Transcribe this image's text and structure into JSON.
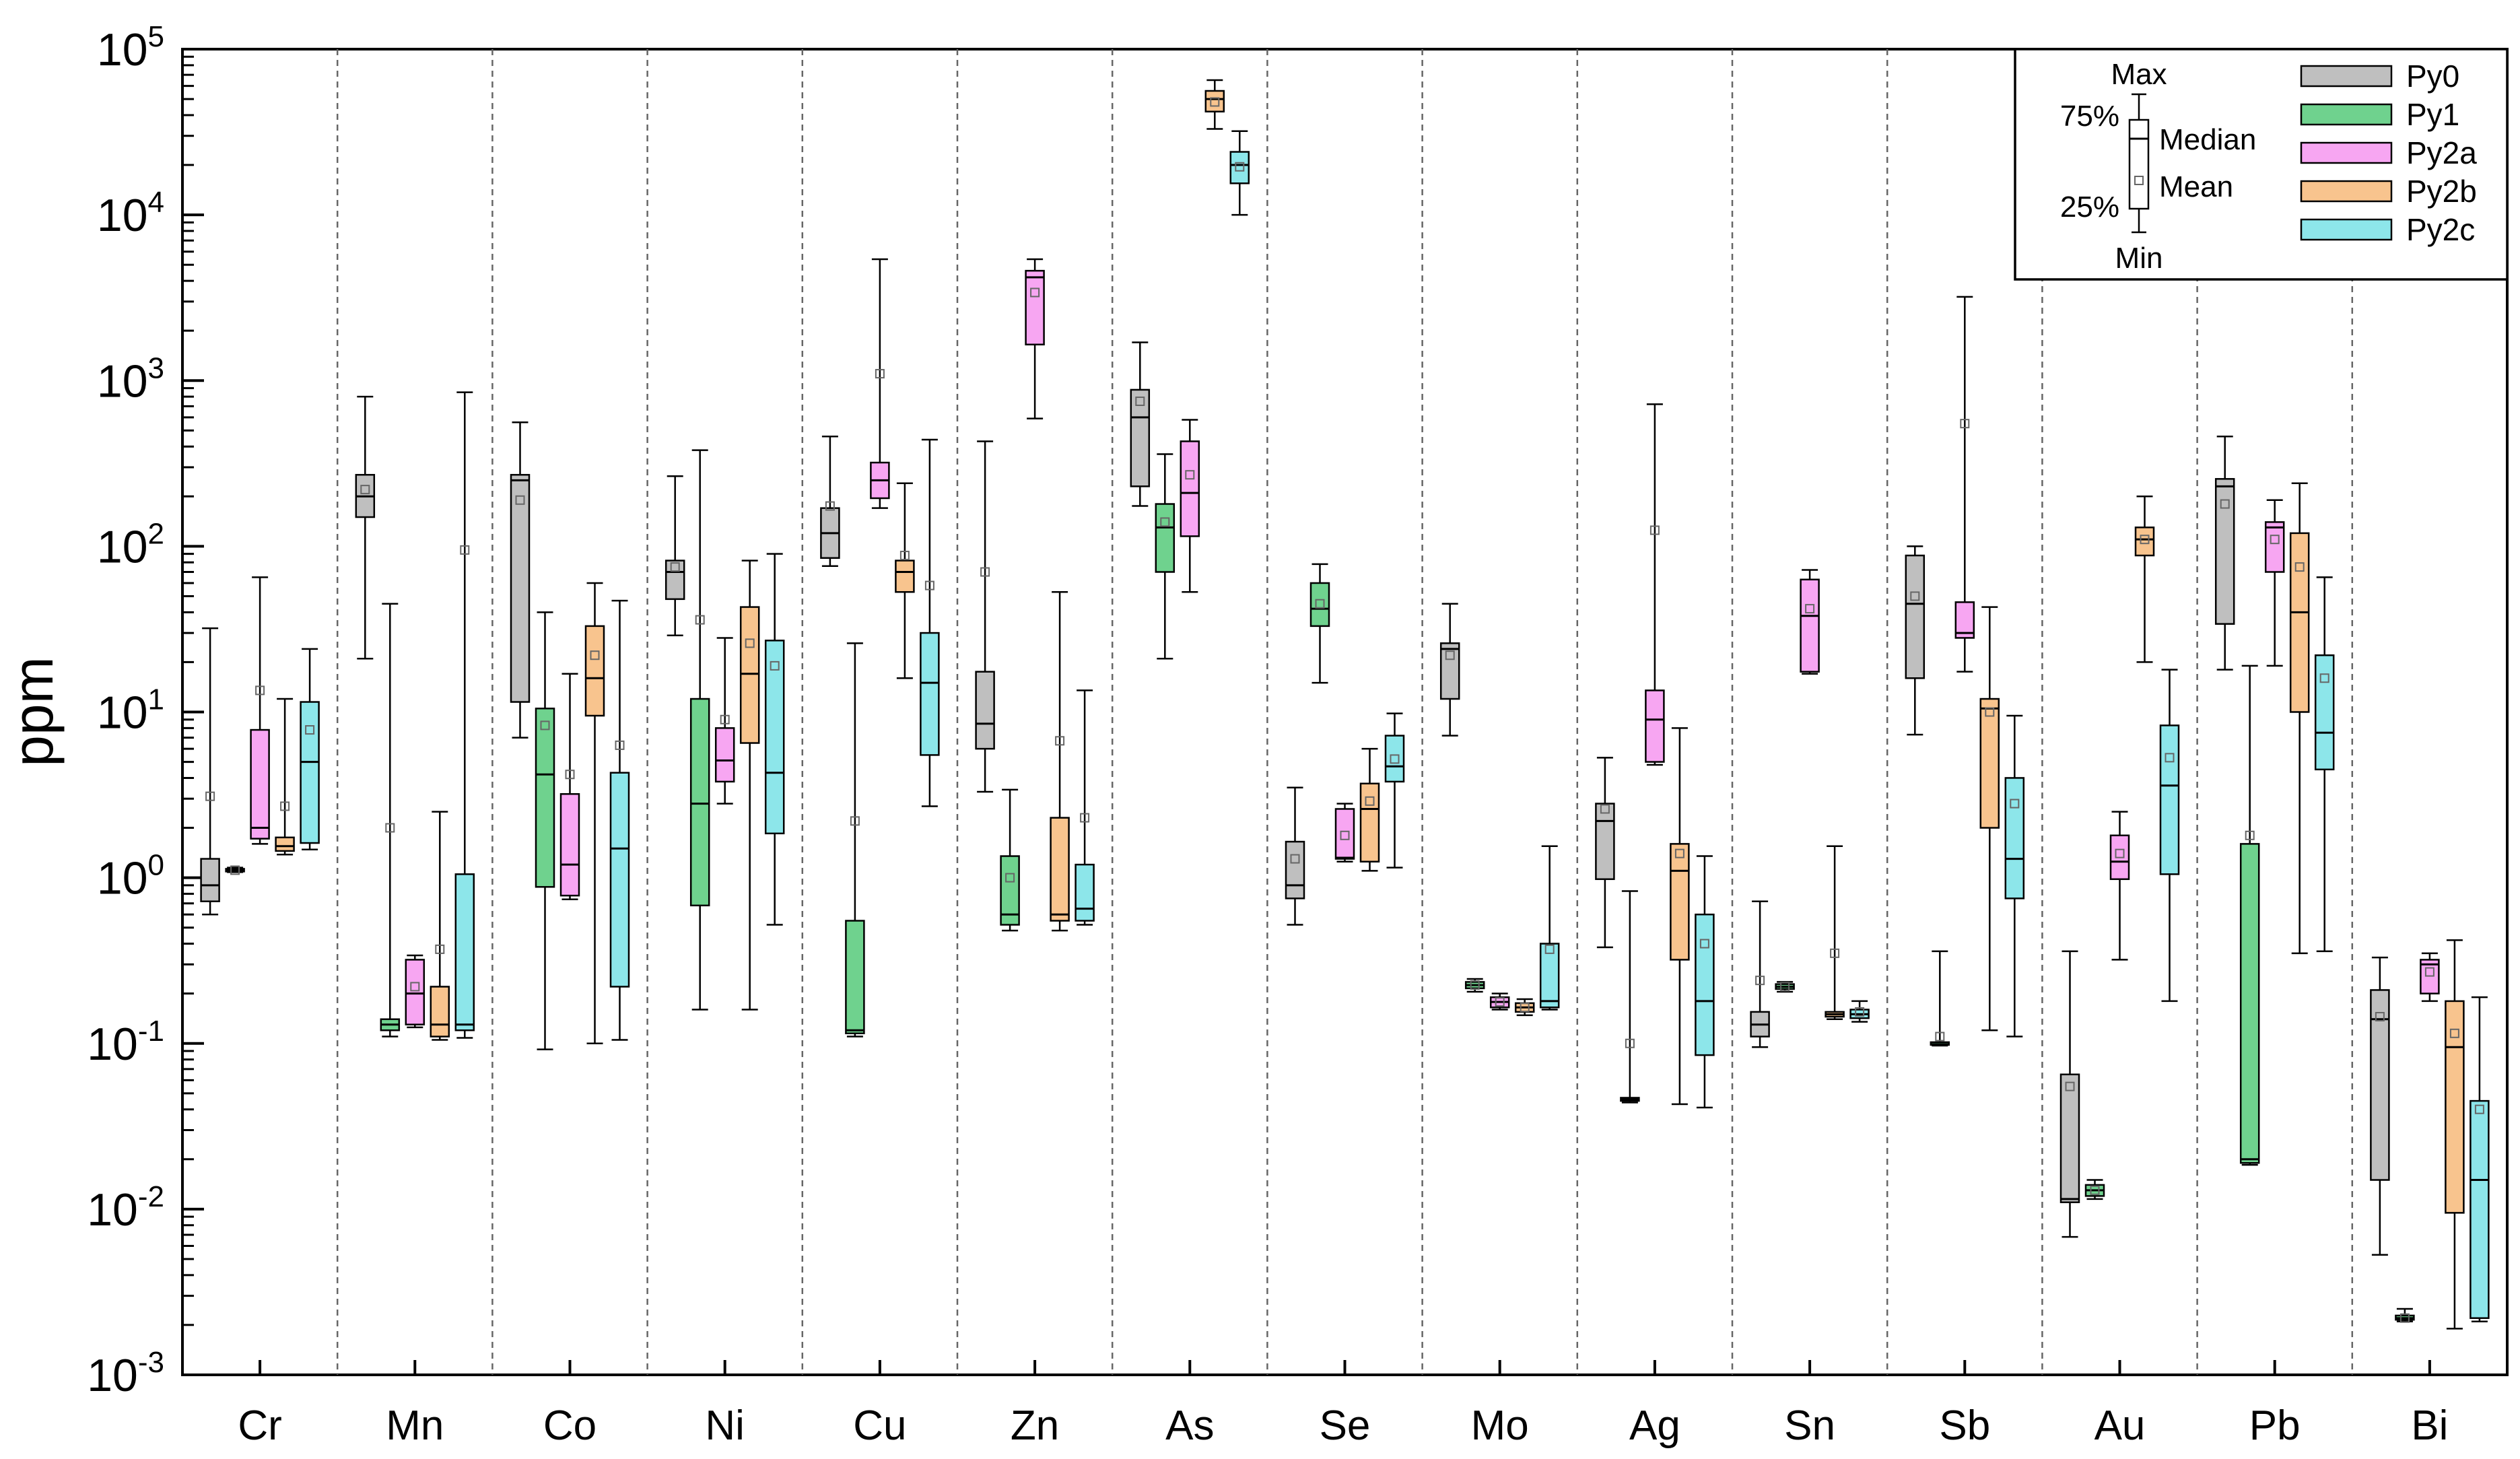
{
  "chart_data": {
    "type": "box",
    "title": "",
    "xlabel": "",
    "ylabel": "ppm",
    "yscale": "log",
    "ylim": [
      0.001,
      100000
    ],
    "y_tick_labels": [
      {
        "base": "10",
        "exp": "-3"
      },
      {
        "base": "10",
        "exp": "-2"
      },
      {
        "base": "10",
        "exp": "-1"
      },
      {
        "base": "10",
        "exp": "0"
      },
      {
        "base": "10",
        "exp": "1"
      },
      {
        "base": "10",
        "exp": "2"
      },
      {
        "base": "10",
        "exp": "3"
      },
      {
        "base": "10",
        "exp": "4"
      },
      {
        "base": "10",
        "exp": "5"
      }
    ],
    "categories": [
      "Cr",
      "Mn",
      "Co",
      "Ni",
      "Cu",
      "Zn",
      "As",
      "Se",
      "Mo",
      "Ag",
      "Sn",
      "Sb",
      "Au",
      "Pb",
      "Bi"
    ],
    "series": [
      {
        "name": "Py0",
        "color": "#bfbfbf",
        "boxes": [
          {
            "min": 0.6,
            "q1": 0.72,
            "median": 0.9,
            "q3": 1.3,
            "max": 32,
            "mean": 3.1
          },
          {
            "min": 21,
            "q1": 150,
            "median": 200,
            "q3": 270,
            "max": 800,
            "mean": 220
          },
          {
            "min": 7,
            "q1": 11.5,
            "median": 250,
            "q3": 270,
            "max": 560,
            "mean": 190
          },
          {
            "min": 29,
            "q1": 48,
            "median": 70,
            "q3": 82,
            "max": 265,
            "mean": 75
          },
          {
            "min": 76,
            "q1": 85,
            "median": 120,
            "q3": 170,
            "max": 460,
            "mean": 175
          },
          {
            "min": 3.3,
            "q1": 6,
            "median": 8.5,
            "q3": 17.5,
            "max": 430,
            "mean": 70
          },
          {
            "min": 175,
            "q1": 230,
            "median": 600,
            "q3": 880,
            "max": 1700,
            "mean": 750
          },
          {
            "min": 0.52,
            "q1": 0.75,
            "median": 0.9,
            "q3": 1.65,
            "max": 3.5,
            "mean": 1.3
          },
          {
            "min": 7.2,
            "q1": 12,
            "median": 24,
            "q3": 26,
            "max": 45,
            "mean": 22
          },
          {
            "min": 0.38,
            "q1": 0.98,
            "median": 2.2,
            "q3": 2.8,
            "max": 5.3,
            "mean": 2.6
          },
          {
            "min": 0.095,
            "q1": 0.11,
            "median": 0.13,
            "q3": 0.155,
            "max": 0.72,
            "mean": 0.24
          },
          {
            "min": 7.3,
            "q1": 16,
            "median": 45,
            "q3": 88,
            "max": 100,
            "mean": 50
          },
          {
            "min": 0.0068,
            "q1": 0.011,
            "median": 0.0115,
            "q3": 0.065,
            "max": 0.36,
            "mean": 0.055
          },
          {
            "min": 18,
            "q1": 34,
            "median": 230,
            "q3": 255,
            "max": 460,
            "mean": 180
          },
          {
            "min": 0.0053,
            "q1": 0.015,
            "median": 0.14,
            "q3": 0.21,
            "max": 0.33,
            "mean": 0.145
          }
        ]
      },
      {
        "name": "Py1",
        "color": "#6fd28e",
        "boxes": [
          {
            "min": 1.08,
            "q1": 1.09,
            "median": 1.11,
            "q3": 1.13,
            "max": 1.15,
            "mean": 1.11
          },
          {
            "min": 0.11,
            "q1": 0.12,
            "median": 0.13,
            "q3": 0.14,
            "max": 45,
            "mean": 2
          },
          {
            "min": 0.092,
            "q1": 0.88,
            "median": 4.2,
            "q3": 10.5,
            "max": 40,
            "mean": 8.3
          },
          {
            "min": 0.16,
            "q1": 0.68,
            "median": 2.8,
            "q3": 12,
            "max": 380,
            "mean": 36
          },
          {
            "min": 0.11,
            "q1": 0.115,
            "median": 0.12,
            "q3": 0.55,
            "max": 26,
            "mean": 2.2
          },
          {
            "min": 0.48,
            "q1": 0.52,
            "median": 0.6,
            "q3": 1.35,
            "max": 3.4,
            "mean": 1
          },
          {
            "min": 21,
            "q1": 70,
            "median": 130,
            "q3": 180,
            "max": 360,
            "mean": 140
          },
          {
            "min": 15,
            "q1": 33,
            "median": 42,
            "q3": 60,
            "max": 78,
            "mean": 45
          },
          {
            "min": 0.205,
            "q1": 0.215,
            "median": 0.225,
            "q3": 0.235,
            "max": 0.245,
            "mean": 0.225
          },
          {
            "min": 0.044,
            "q1": 0.045,
            "median": 0.046,
            "q3": 0.047,
            "max": 0.83,
            "mean": 0.1
          },
          {
            "min": 0.205,
            "q1": 0.213,
            "median": 0.22,
            "q3": 0.228,
            "max": 0.235,
            "mean": 0.22
          },
          {
            "min": 0.097,
            "q1": 0.098,
            "median": 0.099,
            "q3": 0.1,
            "max": 0.36,
            "mean": 0.11
          },
          {
            "min": 0.0115,
            "q1": 0.012,
            "median": 0.013,
            "q3": 0.014,
            "max": 0.015,
            "mean": 0.013
          },
          {
            "min": 0.0185,
            "q1": 0.019,
            "median": 0.02,
            "q3": 1.6,
            "max": 19,
            "mean": 1.8
          },
          {
            "min": 0.0021,
            "q1": 0.00215,
            "median": 0.0022,
            "q3": 0.00228,
            "max": 0.0025,
            "mean": 0.0022
          }
        ]
      },
      {
        "name": "Py2a",
        "color": "#f7a6f2",
        "boxes": [
          {
            "min": 1.6,
            "q1": 1.72,
            "median": 2,
            "q3": 7.8,
            "max": 65,
            "mean": 13.5
          },
          {
            "min": 0.125,
            "q1": 0.13,
            "median": 0.2,
            "q3": 0.32,
            "max": 0.34,
            "mean": 0.22
          },
          {
            "min": 0.74,
            "q1": 0.78,
            "median": 1.2,
            "q3": 3.2,
            "max": 17,
            "mean": 4.2
          },
          {
            "min": 2.8,
            "q1": 3.8,
            "median": 5.1,
            "q3": 8,
            "max": 28,
            "mean": 9
          },
          {
            "min": 170,
            "q1": 195,
            "median": 250,
            "q3": 320,
            "max": 5400,
            "mean": 1100
          },
          {
            "min": 590,
            "q1": 1650,
            "median": 4200,
            "q3": 4600,
            "max": 5400,
            "mean": 3400
          },
          {
            "min": 53,
            "q1": 115,
            "median": 210,
            "q3": 430,
            "max": 580,
            "mean": 270
          },
          {
            "min": 1.25,
            "q1": 1.3,
            "median": 1.32,
            "q3": 2.6,
            "max": 2.8,
            "mean": 1.8
          },
          {
            "min": 0.16,
            "q1": 0.165,
            "median": 0.178,
            "q3": 0.19,
            "max": 0.2,
            "mean": 0.178
          },
          {
            "min": 4.8,
            "q1": 5,
            "median": 9,
            "q3": 13.5,
            "max": 720,
            "mean": 125
          },
          {
            "min": 17,
            "q1": 17.5,
            "median": 38,
            "q3": 63,
            "max": 72,
            "mean": 42
          },
          {
            "min": 17.5,
            "q1": 28,
            "median": 30,
            "q3": 46,
            "max": 3200,
            "mean": 550
          },
          {
            "min": 0.32,
            "q1": 0.98,
            "median": 1.25,
            "q3": 1.8,
            "max": 2.5,
            "mean": 1.4
          },
          {
            "min": 19,
            "q1": 70,
            "median": 130,
            "q3": 140,
            "max": 190,
            "mean": 110
          },
          {
            "min": 0.18,
            "q1": 0.2,
            "median": 0.3,
            "q3": 0.32,
            "max": 0.35,
            "mean": 0.27
          }
        ]
      },
      {
        "name": "Py2b",
        "color": "#f8c48e",
        "boxes": [
          {
            "min": 1.38,
            "q1": 1.45,
            "median": 1.55,
            "q3": 1.75,
            "max": 12,
            "mean": 2.7
          },
          {
            "min": 0.105,
            "q1": 0.11,
            "median": 0.13,
            "q3": 0.22,
            "max": 2.5,
            "mean": 0.37
          },
          {
            "min": 0.1,
            "q1": 9.5,
            "median": 16,
            "q3": 33,
            "max": 60,
            "mean": 22
          },
          {
            "min": 0.16,
            "q1": 6.5,
            "median": 17,
            "q3": 43,
            "max": 82,
            "mean": 26
          },
          {
            "min": 16,
            "q1": 53,
            "median": 70,
            "q3": 82,
            "max": 240,
            "mean": 88
          },
          {
            "min": 0.48,
            "q1": 0.55,
            "median": 0.6,
            "q3": 2.3,
            "max": 53,
            "mean": 6.7
          },
          {
            "min": 33000,
            "q1": 42000,
            "median": 50000,
            "q3": 56000,
            "max": 65000,
            "mean": 48000
          },
          {
            "min": 1.1,
            "q1": 1.25,
            "median": 2.6,
            "q3": 3.7,
            "max": 6,
            "mean": 2.9
          },
          {
            "min": 0.148,
            "q1": 0.155,
            "median": 0.165,
            "q3": 0.175,
            "max": 0.185,
            "mean": 0.165
          },
          {
            "min": 0.043,
            "q1": 0.32,
            "median": 1.1,
            "q3": 1.6,
            "max": 8,
            "mean": 1.4
          },
          {
            "min": 0.14,
            "q1": 0.145,
            "median": 0.15,
            "q3": 0.155,
            "max": 1.55,
            "mean": 0.35
          },
          {
            "min": 0.12,
            "q1": 2,
            "median": 10.5,
            "q3": 12,
            "max": 43,
            "mean": 10
          },
          {
            "min": 20,
            "q1": 88,
            "median": 110,
            "q3": 130,
            "max": 200,
            "mean": 110
          },
          {
            "min": 0.35,
            "q1": 10,
            "median": 40,
            "q3": 120,
            "max": 240,
            "mean": 75
          },
          {
            "min": 0.0019,
            "q1": 0.0095,
            "median": 0.095,
            "q3": 0.18,
            "max": 0.42,
            "mean": 0.115
          }
        ]
      },
      {
        "name": "Py2c",
        "color": "#8de6ea",
        "boxes": [
          {
            "min": 1.48,
            "q1": 1.62,
            "median": 5,
            "q3": 11.5,
            "max": 24,
            "mean": 7.8
          },
          {
            "min": 0.108,
            "q1": 0.12,
            "median": 0.13,
            "q3": 1.05,
            "max": 850,
            "mean": 95
          },
          {
            "min": 0.105,
            "q1": 0.22,
            "median": 1.5,
            "q3": 4.3,
            "max": 47,
            "mean": 6.3
          },
          {
            "min": 0.52,
            "q1": 1.85,
            "median": 4.3,
            "q3": 27,
            "max": 90,
            "mean": 19
          },
          {
            "min": 2.7,
            "q1": 5.5,
            "median": 15,
            "q3": 30,
            "max": 440,
            "mean": 58
          },
          {
            "min": 0.52,
            "q1": 0.55,
            "median": 0.65,
            "q3": 1.2,
            "max": 13.5,
            "mean": 2.3
          },
          {
            "min": 10000,
            "q1": 15500,
            "median": 20000,
            "q3": 24000,
            "max": 32000,
            "mean": 19500
          },
          {
            "min": 1.15,
            "q1": 3.8,
            "median": 4.7,
            "q3": 7.2,
            "max": 9.8,
            "mean": 5.2
          },
          {
            "min": 0.16,
            "q1": 0.165,
            "median": 0.18,
            "q3": 0.4,
            "max": 1.55,
            "mean": 0.37
          },
          {
            "min": 0.041,
            "q1": 0.085,
            "median": 0.18,
            "q3": 0.6,
            "max": 1.35,
            "mean": 0.4
          },
          {
            "min": 0.135,
            "q1": 0.142,
            "median": 0.15,
            "q3": 0.16,
            "max": 0.18,
            "mean": 0.155
          },
          {
            "min": 0.11,
            "q1": 0.75,
            "median": 1.3,
            "q3": 4,
            "max": 9.5,
            "mean": 2.8
          },
          {
            "min": 0.18,
            "q1": 1.05,
            "median": 3.6,
            "q3": 8.3,
            "max": 18,
            "mean": 5.3
          },
          {
            "min": 0.36,
            "q1": 4.5,
            "median": 7.5,
            "q3": 22,
            "max": 65,
            "mean": 16
          },
          {
            "min": 0.0021,
            "q1": 0.0022,
            "median": 0.015,
            "q3": 0.045,
            "max": 0.19,
            "mean": 0.04
          }
        ]
      }
    ],
    "legend": {
      "position": "top-right",
      "key_labels": {
        "max": "Max",
        "q3": "75%",
        "median": "Median",
        "mean": "Mean",
        "q1": "25%",
        "min": "Min"
      }
    }
  }
}
